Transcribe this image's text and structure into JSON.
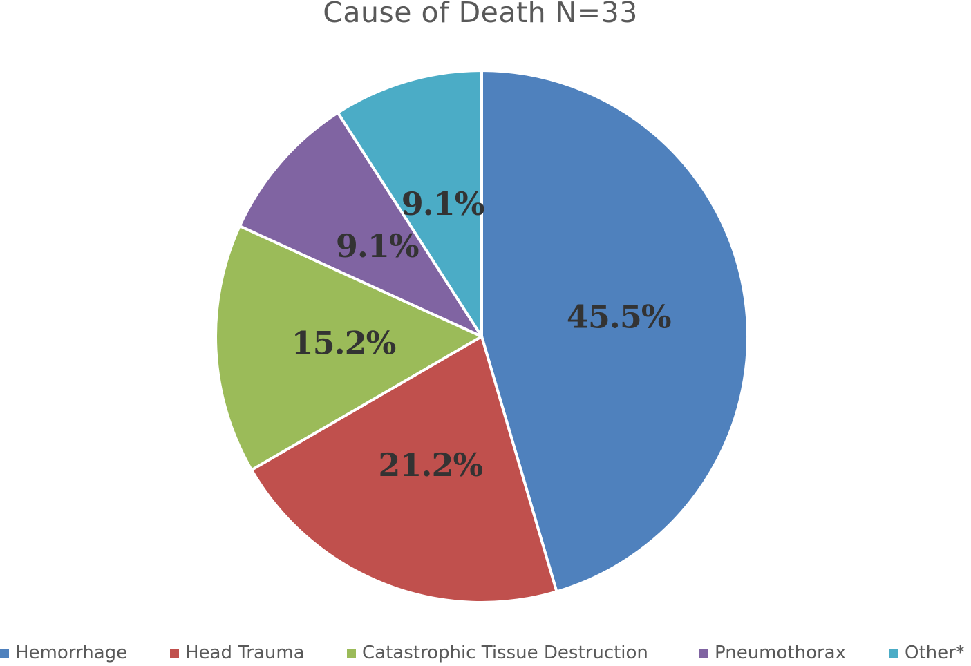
{
  "chart_data": {
    "type": "pie",
    "title": "Cause of Death N=33",
    "categories": [
      "Hemorrhage",
      "Head Trauma",
      "Catastrophic Tissue Destruction",
      "Pneumothorax",
      "Other*"
    ],
    "values": [
      45.5,
      21.2,
      15.2,
      9.1,
      9.1
    ],
    "data_labels": [
      "45.5%",
      "21.2%",
      "15.2%",
      "9.1%",
      "9.1%"
    ],
    "colors": [
      "#4F81BD",
      "#C0504D",
      "#9BBB59",
      "#8064A2",
      "#4BACC6"
    ],
    "legend": "bottom"
  }
}
